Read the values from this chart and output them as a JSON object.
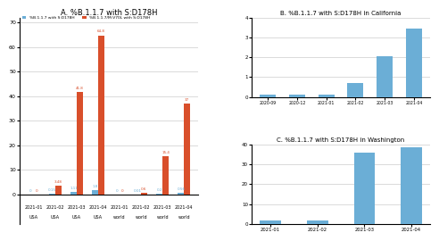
{
  "panel_A": {
    "title": "A. %B.1.1.7 with S:D178H",
    "legend_blue": "%B.1.1.7 with S:D178H",
    "legend_orange": "%B.1.1.7/M:V70L with S:D178H",
    "color_blue": "#6BAED6",
    "color_orange": "#D94F2B",
    "date_labels": [
      "2021-01",
      "2021-02",
      "2021-03",
      "2021-04",
      "2021-01",
      "2021-02",
      "2021-03",
      "2021-04"
    ],
    "region_labels": [
      "USA",
      "USA",
      "USA",
      "USA",
      "world",
      "world",
      "world",
      "world"
    ],
    "blue_values": [
      0,
      0.15,
      1.11,
      1.8,
      0,
      0.01,
      0.2,
      0.56
    ],
    "orange_values": [
      0,
      3.48,
      41.8,
      64.8,
      0,
      0.6,
      15.4,
      37
    ],
    "blue_labels": [
      "0",
      "0.15",
      "1.11",
      "1.8",
      "0",
      "0.01",
      "0.2",
      "0.56"
    ],
    "orange_labels": [
      "0",
      "3.48",
      "41.8",
      "64.8",
      "0",
      "0.6",
      "15.4",
      "37"
    ],
    "ylim": [
      0,
      70
    ],
    "yticks": [
      0,
      10,
      20,
      30,
      40,
      50,
      60,
      70
    ]
  },
  "panel_B": {
    "title": "B. %B.1.1.7 with S:D178H in California",
    "color": "#6BAED6",
    "xlabels": [
      "2020-09",
      "2020-12",
      "2021-01",
      "2021-02",
      "2021-03",
      "2021-04"
    ],
    "values": [
      0.13,
      0.13,
      0.13,
      0.72,
      2.05,
      3.45
    ],
    "ylim": [
      0,
      4
    ],
    "yticks": [
      0,
      1,
      2,
      3,
      4
    ]
  },
  "panel_C": {
    "title": "C. %B.1.1.7 with S:D178H in Washington",
    "color": "#6BAED6",
    "xlabels": [
      "2021-01",
      "2021-02",
      "2021-03",
      "2021-04"
    ],
    "values": [
      1.8,
      1.8,
      36.0,
      38.5
    ],
    "ylim": [
      0,
      40
    ],
    "yticks": [
      0,
      10,
      20,
      30,
      40
    ]
  }
}
